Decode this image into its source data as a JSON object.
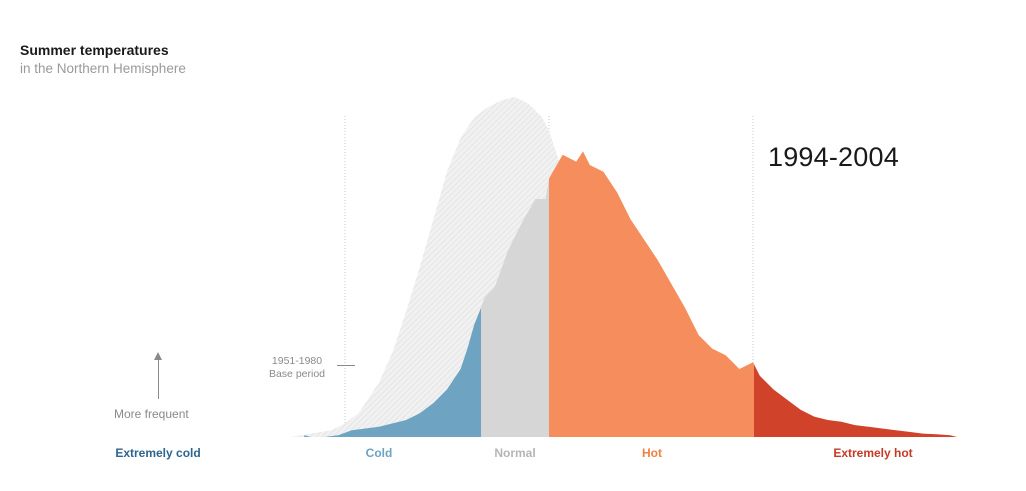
{
  "title": "Summer temperatures",
  "subtitle": "in the Northern Hemisphere",
  "period_label": "1994-2004",
  "base_label_line1": "1951-1980",
  "base_label_line2": "Base period",
  "frequency_label": "More frequent",
  "colors": {
    "extremely_cold": "#2e6590",
    "cold": "#6ea3c2",
    "normal": "#d6d6d6",
    "hot": "#f58d5c",
    "extremely_hot": "#d0432a",
    "base_period_fill": "#eeeeee",
    "category_normal_text": "#b5b5b5",
    "category_hot_text": "#f0803f",
    "category_xhot_text": "#c63a25"
  },
  "chart_data": {
    "type": "area",
    "x_unit": "standard deviations from the 1951-1980 mean",
    "xlim": [
      -3.5,
      6.5
    ],
    "ylim": [
      0,
      1
    ],
    "boundaries": [
      -2.5,
      -0.5,
      0.5,
      3.5
    ],
    "categories": [
      {
        "label": "Extremely cold",
        "from": -3.5,
        "to": -2.5
      },
      {
        "label": "Cold",
        "from": -2.5,
        "to": -0.5
      },
      {
        "label": "Normal",
        "from": -0.5,
        "to": 0.5
      },
      {
        "label": "Hot",
        "from": 0.5,
        "to": 3.5
      },
      {
        "label": "Extremely hot",
        "from": 3.5,
        "to": 6.5
      }
    ],
    "series": [
      {
        "name": "1951-1980",
        "x": [
          -3.3,
          -3.0,
          -2.7,
          -2.5,
          -2.3,
          -2.0,
          -1.8,
          -1.6,
          -1.4,
          -1.2,
          -1.0,
          -0.8,
          -0.6,
          -0.4,
          -0.2,
          0.0,
          0.2,
          0.4,
          0.5,
          0.6,
          0.8,
          1.0,
          1.2,
          1.4,
          1.6,
          1.8,
          2.0,
          2.2,
          2.5,
          2.8,
          3.0
        ],
        "y": [
          0.0,
          0.01,
          0.02,
          0.04,
          0.07,
          0.16,
          0.25,
          0.37,
          0.5,
          0.64,
          0.78,
          0.88,
          0.94,
          0.97,
          0.99,
          1.0,
          0.98,
          0.94,
          0.9,
          0.84,
          0.72,
          0.55,
          0.42,
          0.3,
          0.2,
          0.12,
          0.07,
          0.04,
          0.015,
          0.005,
          0.0
        ]
      },
      {
        "name": "1994-2004",
        "x": [
          -3.1,
          -3.0,
          -2.8,
          -2.6,
          -2.4,
          -2.2,
          -2.0,
          -1.8,
          -1.6,
          -1.4,
          -1.2,
          -1.0,
          -0.8,
          -0.7,
          -0.6,
          -0.5,
          -0.45,
          -0.3,
          -0.1,
          0.1,
          0.3,
          0.45,
          0.5,
          0.7,
          0.9,
          1.0,
          1.1,
          1.3,
          1.5,
          1.7,
          1.9,
          2.1,
          2.3,
          2.5,
          2.7,
          2.9,
          3.1,
          3.3,
          3.5,
          3.6,
          3.8,
          4.0,
          4.2,
          4.4,
          4.6,
          4.8,
          5.0,
          5.2,
          5.4,
          5.6,
          5.8,
          6.0,
          6.2,
          6.4,
          6.5
        ],
        "y": [
          0.005,
          0.0,
          0.0,
          0.005,
          0.02,
          0.025,
          0.03,
          0.04,
          0.05,
          0.07,
          0.1,
          0.14,
          0.2,
          0.26,
          0.33,
          0.38,
          0.41,
          0.44,
          0.55,
          0.63,
          0.7,
          0.7,
          0.76,
          0.83,
          0.81,
          0.84,
          0.8,
          0.78,
          0.72,
          0.64,
          0.58,
          0.52,
          0.45,
          0.38,
          0.3,
          0.26,
          0.24,
          0.2,
          0.22,
          0.18,
          0.14,
          0.11,
          0.08,
          0.06,
          0.05,
          0.045,
          0.035,
          0.03,
          0.025,
          0.02,
          0.015,
          0.01,
          0.008,
          0.005,
          0.0
        ]
      }
    ]
  }
}
